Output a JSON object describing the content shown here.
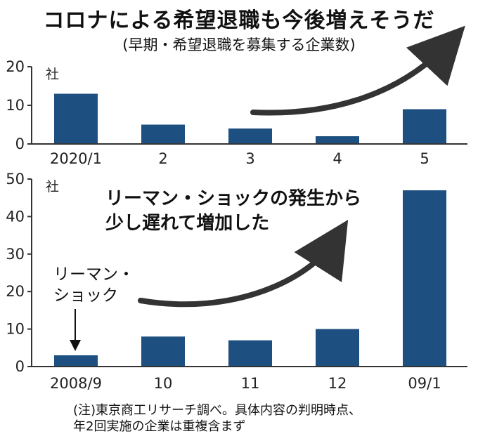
{
  "title": "コロナによる希望退職も今後増えそうだ",
  "subtitle": "(早期・希望退職を募集する企業数)",
  "colors": {
    "bar": "#1d4f80",
    "axis": "#333333",
    "arrow": "#333333"
  },
  "chart_data": [
    {
      "type": "bar",
      "categories": [
        "2020/1",
        "2",
        "3",
        "4",
        "5"
      ],
      "values": [
        13,
        5,
        4,
        2,
        9
      ],
      "unit": "社",
      "ylim": [
        0,
        20
      ],
      "yticks": [
        0,
        10,
        20
      ],
      "grid": false
    },
    {
      "type": "bar",
      "categories": [
        "2008/9",
        "10",
        "11",
        "12",
        "09/1"
      ],
      "values": [
        3,
        8,
        7,
        10,
        47
      ],
      "unit": "社",
      "ylim": [
        0,
        50
      ],
      "yticks": [
        0,
        10,
        20,
        30,
        40,
        50
      ],
      "grid": false,
      "annotations": {
        "main_line1": "リーマン・ショックの発生から",
        "main_line2": "少し遅れて増加した",
        "event_line1": "リーマン・",
        "event_line2": "ショック"
      }
    }
  ],
  "note": {
    "line1": "(注)東京商工リサーチ調べ。具体内容の判明時点、",
    "line2": "年2回実施の企業は重複含まず"
  }
}
